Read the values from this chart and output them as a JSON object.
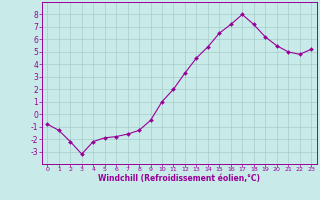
{
  "x": [
    0,
    1,
    2,
    3,
    4,
    5,
    6,
    7,
    8,
    9,
    10,
    11,
    12,
    13,
    14,
    15,
    16,
    17,
    18,
    19,
    20,
    21,
    22,
    23
  ],
  "y": [
    -0.8,
    -1.3,
    -2.2,
    -3.2,
    -2.2,
    -1.9,
    -1.8,
    -1.6,
    -1.3,
    -0.5,
    1.0,
    2.0,
    3.3,
    4.5,
    5.4,
    6.5,
    7.2,
    8.0,
    7.2,
    6.2,
    5.5,
    5.0,
    4.8,
    5.2
  ],
  "line_color": "#990099",
  "marker": "D",
  "marker_size": 2.0,
  "bg_color": "#C8EAE8",
  "grid_color": "#A8CCCA",
  "xlabel": "Windchill (Refroidissement éolien,°C)",
  "xlabel_color": "#990099",
  "tick_color": "#990099",
  "axis_color": "#990099",
  "ylim": [
    -4,
    9
  ],
  "xlim": [
    -0.5,
    23.5
  ],
  "yticks": [
    -3,
    -2,
    -1,
    0,
    1,
    2,
    3,
    4,
    5,
    6,
    7,
    8
  ],
  "xticks": [
    0,
    1,
    2,
    3,
    4,
    5,
    6,
    7,
    8,
    9,
    10,
    11,
    12,
    13,
    14,
    15,
    16,
    17,
    18,
    19,
    20,
    21,
    22,
    23
  ],
  "xlabel_fontsize": 5.5,
  "tick_fontsize_x": 4.5,
  "tick_fontsize_y": 5.5
}
